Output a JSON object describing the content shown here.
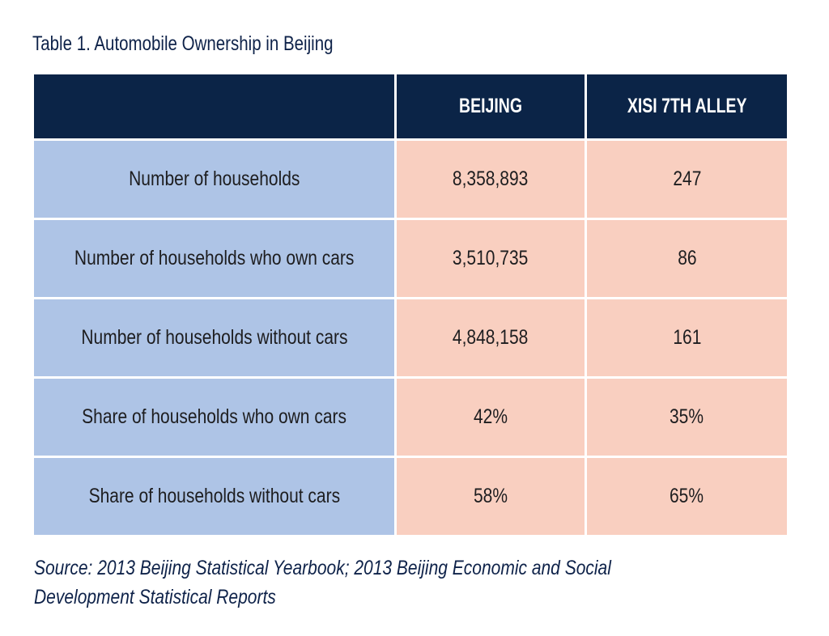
{
  "title": "Table 1. Automobile Ownership in Beijing",
  "chart_data": {
    "type": "table",
    "columns": [
      "",
      "BEIJING",
      "XISI 7TH ALLEY"
    ],
    "rows": [
      {
        "label": "Number of households",
        "values": [
          "8,358,893",
          "247"
        ]
      },
      {
        "label": "Number of households who own cars",
        "values": [
          "3,510,735",
          "86"
        ]
      },
      {
        "label": "Number of households without cars",
        "values": [
          "4,848,158",
          "161"
        ]
      },
      {
        "label": "Share of households who own cars",
        "values": [
          "42%",
          "35%"
        ]
      },
      {
        "label": "Share of households without cars",
        "values": [
          "58%",
          "65%"
        ]
      }
    ]
  },
  "source": {
    "line1": "Source: 2013 Beijing Statistical Yearbook; 2013 Beijing Economic and Social",
    "line2": "Development Statistical Reports"
  },
  "colors": {
    "header": "#0b2447",
    "label_cells": "#aec4e6",
    "value_cells": "#f9cfc0",
    "title_text": "#0e2249"
  }
}
